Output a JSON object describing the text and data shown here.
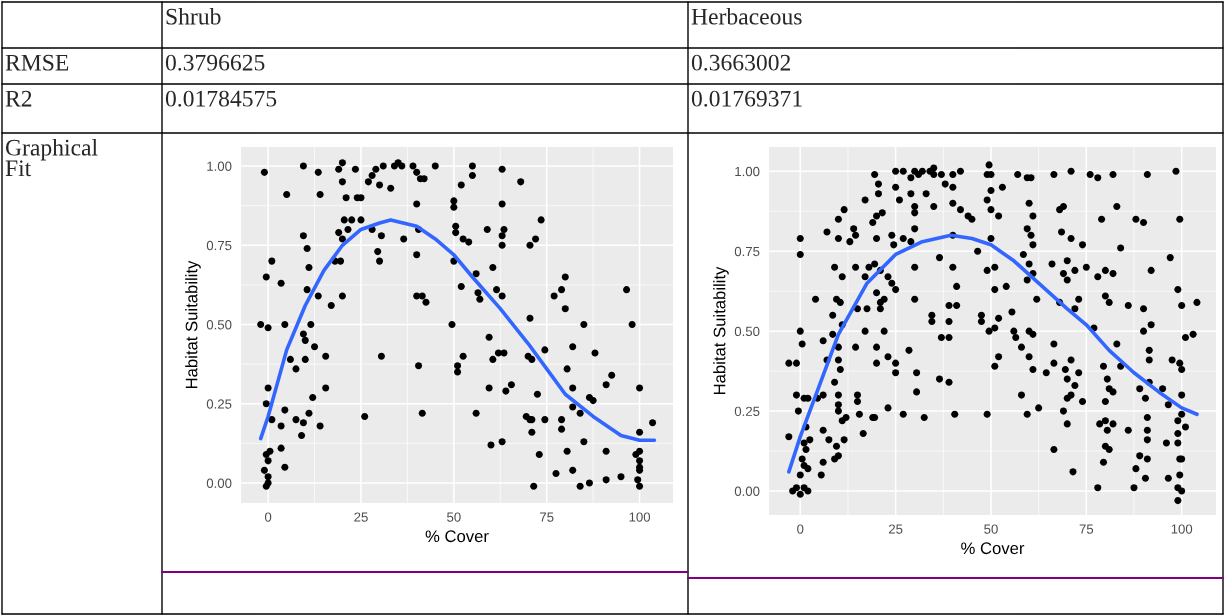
{
  "chart_data": [
    {
      "type": "other",
      "annotations": [
        "Shrub",
        "Herbaceous",
        "RMSE",
        "0.3796625",
        "0.3663002",
        "R2",
        "0.01784575",
        "0.01769371",
        "Graphical Fit"
      ]
    },
    {
      "type": "scatter",
      "xlabel": "% Cover",
      "ylabel": "Habitat Suitability",
      "xlim": [
        -7.3,
        109
      ],
      "ylim": [
        -0.063,
        1.06
      ],
      "xticks": [
        0,
        25,
        50,
        75,
        100
      ],
      "yticks": [
        {
          "value": 0,
          "label": "0.00"
        },
        {
          "value": 0.25,
          "label": "0.25"
        },
        {
          "value": 0.5,
          "label": "0.50"
        },
        {
          "value": 0.75,
          "label": "0.75"
        },
        {
          "value": 1,
          "label": "1.00"
        }
      ],
      "grid": true,
      "series": [
        {
          "type": "scatter",
          "color": "#000000",
          "marker": "circle",
          "x": [
            -1,
            9.5,
            13.5,
            5,
            14,
            19,
            20,
            23.5,
            20,
            21,
            24,
            25,
            27,
            28,
            30,
            29,
            31,
            33,
            34,
            35,
            36,
            39,
            40,
            41,
            42,
            45,
            40,
            55,
            55,
            63,
            68,
            52,
            50,
            50,
            63,
            20.5,
            22.5,
            25,
            19,
            20,
            21.5,
            28,
            30.5,
            36.5,
            40.5,
            50.5,
            50.5,
            52.5,
            54,
            59,
            63.5,
            63,
            63,
            70.5,
            72,
            73.5,
            9.5,
            10.5,
            1,
            11,
            18,
            19.5,
            29.5,
            30,
            40,
            50,
            60.5,
            56,
            -0.5,
            3.5,
            10.5,
            13.5,
            17,
            20,
            40,
            41.5,
            42.5,
            52,
            56.5,
            57,
            61.5,
            63,
            77,
            79,
            80,
            80,
            96.5,
            -2,
            0,
            4.5,
            11.5,
            9.5,
            10,
            12.5,
            15.5,
            6,
            10,
            30.5,
            49.5,
            70.5,
            59.5,
            85,
            98,
            7.5,
            40.5,
            51,
            51,
            52.5,
            60.5,
            62,
            63.5,
            70,
            71,
            74.5,
            82,
            88,
            80.5,
            0,
            15.5,
            12,
            -0.5,
            4.5,
            1,
            3.5,
            7.5,
            9.5,
            11,
            14,
            9,
            26,
            41.5,
            56,
            59.5,
            64,
            65.5,
            69.5,
            70.5,
            71,
            72.5,
            74.5,
            71,
            79,
            79,
            82,
            82,
            84,
            86.5,
            87.5,
            91,
            92.5,
            100,
            103.5,
            100,
            85,
            60,
            63,
            73,
            80.5,
            91,
            99,
            100,
            100,
            100,
            100,
            -0.5,
            0.5,
            0,
            3.5,
            4.5,
            -1,
            0,
            -0.5,
            0,
            77.5,
            82,
            71.5,
            84,
            86.5,
            91,
            95,
            99.5,
            100
          ],
          "values": [
            0.98,
            1.0,
            0.98,
            0.91,
            0.91,
            0.99,
            1.01,
            0.99,
            0.95,
            0.9,
            0.9,
            0.9,
            0.95,
            0.97,
            0.94,
            0.99,
            1.0,
            0.93,
            1.0,
            1.01,
            1.0,
            1.0,
            0.98,
            0.96,
            0.96,
            1.0,
            0.88,
            1.0,
            0.97,
            0.99,
            0.95,
            0.94,
            0.89,
            0.87,
            0.88,
            0.83,
            0.83,
            0.83,
            0.79,
            0.77,
            0.8,
            0.8,
            0.78,
            0.77,
            0.8,
            0.81,
            0.79,
            0.77,
            0.76,
            0.8,
            0.8,
            0.78,
            0.75,
            0.75,
            0.77,
            0.83,
            0.78,
            0.74,
            0.7,
            0.68,
            0.7,
            0.7,
            0.73,
            0.7,
            0.72,
            0.7,
            0.68,
            0.66,
            0.65,
            0.63,
            0.61,
            0.59,
            0.56,
            0.59,
            0.59,
            0.59,
            0.57,
            0.62,
            0.6,
            0.58,
            0.61,
            0.59,
            0.59,
            0.61,
            0.65,
            0.55,
            0.61,
            0.5,
            0.49,
            0.5,
            0.5,
            0.47,
            0.45,
            0.43,
            0.4,
            0.39,
            0.39,
            0.4,
            0.5,
            0.52,
            0.46,
            0.5,
            0.5,
            0.36,
            0.37,
            0.37,
            0.35,
            0.4,
            0.39,
            0.41,
            0.41,
            0.4,
            0.39,
            0.42,
            0.43,
            0.41,
            0.36,
            0.3,
            0.3,
            0.27,
            0.25,
            0.23,
            0.2,
            0.18,
            0.2,
            0.19,
            0.22,
            0.18,
            0.15,
            0.21,
            0.22,
            0.22,
            0.3,
            0.29,
            0.31,
            0.21,
            0.2,
            0.2,
            0.28,
            0.2,
            0.16,
            0.2,
            0.17,
            0.3,
            0.24,
            0.22,
            0.27,
            0.26,
            0.31,
            0.34,
            0.3,
            0.19,
            0.16,
            0.13,
            0.12,
            0.13,
            0.09,
            0.1,
            0.1,
            0.09,
            0.1,
            0.07,
            0.05,
            0.04,
            0.09,
            0.1,
            0.07,
            0.11,
            0.05,
            0.04,
            0.02,
            -0.01,
            0.0,
            0.03,
            0.04,
            -0.01,
            -0.01,
            0.0,
            0.01,
            0.02,
            0.01,
            -0.01
          ]
        },
        {
          "type": "line",
          "color": "#3366ff",
          "x": [
            -2,
            0,
            5,
            10,
            15,
            20,
            25,
            30,
            33,
            40,
            45,
            50,
            55,
            62.5,
            70,
            75,
            80,
            87.5,
            95,
            100,
            104
          ],
          "values": [
            0.14,
            0.21,
            0.42,
            0.56,
            0.67,
            0.75,
            0.8,
            0.82,
            0.83,
            0.81,
            0.77,
            0.72,
            0.65,
            0.55,
            0.44,
            0.36,
            0.28,
            0.21,
            0.15,
            0.135,
            0.135
          ]
        }
      ]
    },
    {
      "type": "scatter",
      "xlabel": "% Cover",
      "ylabel": "Habitat Suitability",
      "xlim": [
        -8.2,
        109
      ],
      "ylim": [
        -0.075,
        1.076
      ],
      "xticks": [
        0,
        25,
        50,
        75,
        100
      ],
      "yticks": [
        {
          "value": 0,
          "label": "0.00"
        },
        {
          "value": 0.25,
          "label": "0.25"
        },
        {
          "value": 0.5,
          "label": "0.50"
        },
        {
          "value": 0.75,
          "label": "0.75"
        },
        {
          "value": 1,
          "label": "1.00"
        }
      ],
      "grid": true,
      "series": [
        {
          "type": "scatter",
          "color": "#000000",
          "marker": "circle",
          "x": [
            19.5,
            20.5,
            20.5,
            25,
            27,
            29,
            30,
            31,
            32,
            34,
            35,
            35,
            37,
            38,
            40,
            40,
            42,
            49,
            49.5,
            50,
            57,
            59.5,
            60.5,
            66.5,
            71,
            76,
            78,
            82,
            91,
            98.5,
            25,
            26,
            29,
            30,
            30,
            33,
            35,
            40,
            42,
            44,
            45,
            50,
            49,
            50,
            52,
            53,
            60,
            61,
            68,
            69,
            79,
            83,
            88,
            90,
            99.5,
            11.5,
            17,
            10,
            19,
            20,
            21.5,
            14,
            14.5,
            7,
            10,
            13,
            0,
            0,
            20,
            24,
            24.5,
            27,
            29,
            30,
            40,
            46.5,
            50,
            59.5,
            60.5,
            61,
            58.5,
            68.5,
            71,
            74,
            84,
            97,
            9,
            11,
            14.5,
            18,
            19.5,
            17,
            21,
            23,
            24,
            25,
            30,
            36.5,
            40,
            41,
            49,
            51,
            51,
            54,
            59.5,
            60,
            61,
            66,
            69,
            70,
            70,
            72,
            75,
            78,
            80,
            82,
            92,
            99,
            4,
            9.5,
            10.5,
            20,
            21,
            22,
            21,
            17.5,
            15,
            30,
            34.5,
            34.5,
            39,
            41,
            39,
            47.5,
            52,
            55.5,
            47.5,
            49.5,
            51,
            56,
            56.5,
            60,
            61,
            62,
            68,
            72,
            73,
            80,
            81,
            86,
            90,
            92,
            90,
            100,
            104,
            103,
            101,
            0,
            0.5,
            6,
            8.5,
            8.5,
            11,
            10,
            14.5,
            17,
            22,
            20,
            28.5,
            37,
            39,
            58,
            66.5,
            77,
            83,
            91.5,
            -3,
            -1,
            7,
            10,
            10.5,
            20,
            23,
            25,
            25,
            30.5,
            30.5,
            36.5,
            39,
            51,
            52,
            60,
            61,
            64.5,
            66.5,
            69.5,
            71,
            70,
            72,
            73,
            79.5,
            80.5,
            82,
            84,
            89,
            91.5,
            95,
            97.5,
            99.5,
            100,
            91.5,
            -1,
            1,
            2,
            4.5,
            6,
            9,
            10,
            10,
            -0.5,
            10,
            11,
            12,
            15,
            15,
            15.5,
            19,
            23,
            27,
            32.5,
            40.5,
            49,
            58,
            59.5,
            62.5,
            69,
            70,
            71,
            74,
            78.5,
            80,
            80.5,
            82,
            80,
            81,
            86,
            90.5,
            91,
            91,
            91,
            96.5,
            100,
            99,
            100,
            101,
            99,
            -3,
            1.5,
            1,
            1.5,
            2.5,
            0.5,
            1,
            2,
            0,
            5.5,
            6,
            6,
            7.5,
            9,
            10,
            9.5,
            11.5,
            16.5,
            19.5,
            66.5,
            70,
            71.5,
            80,
            81,
            79.5,
            89,
            91,
            88,
            90.5,
            78,
            87.5,
            96,
            96.5,
            99,
            99.5,
            100,
            99.5,
            99,
            100,
            99,
            -2,
            -1,
            0,
            1,
            2
          ],
          "values": [
            0.99,
            0.96,
            0.93,
            1.0,
            1.0,
            0.98,
            1.0,
            0.99,
            1.0,
            1.0,
            1.01,
            0.99,
            0.99,
            0.96,
            0.99,
            0.95,
            1.0,
            0.99,
            1.02,
            0.99,
            0.99,
            0.98,
            0.98,
            0.99,
            1.0,
            0.99,
            0.98,
            0.99,
            0.99,
            1.0,
            0.95,
            0.91,
            0.93,
            0.89,
            0.87,
            0.93,
            0.89,
            0.9,
            0.88,
            0.86,
            0.85,
            0.94,
            0.91,
            0.88,
            0.86,
            0.95,
            0.9,
            0.86,
            0.88,
            0.89,
            0.85,
            0.89,
            0.85,
            0.84,
            0.85,
            0.88,
            0.91,
            0.85,
            0.84,
            0.86,
            0.87,
            0.82,
            0.8,
            0.81,
            0.79,
            0.78,
            0.79,
            0.74,
            0.79,
            0.8,
            0.77,
            0.79,
            0.78,
            0.82,
            0.8,
            0.75,
            0.79,
            0.82,
            0.8,
            0.77,
            0.74,
            0.81,
            0.79,
            0.77,
            0.76,
            0.73,
            0.7,
            0.67,
            0.7,
            0.7,
            0.71,
            0.67,
            0.69,
            0.67,
            0.65,
            0.63,
            0.7,
            0.73,
            0.7,
            0.64,
            0.69,
            0.7,
            0.63,
            0.64,
            0.66,
            0.71,
            0.68,
            0.71,
            0.68,
            0.72,
            0.66,
            0.69,
            0.7,
            0.67,
            0.69,
            0.68,
            0.69,
            0.63,
            0.6,
            0.6,
            0.59,
            0.62,
            0.59,
            0.6,
            0.57,
            0.57,
            0.57,
            0.6,
            0.55,
            0.53,
            0.58,
            0.58,
            0.53,
            0.55,
            0.54,
            0.56,
            0.53,
            0.5,
            0.51,
            0.5,
            0.48,
            0.5,
            0.49,
            0.6,
            0.59,
            0.57,
            0.6,
            0.61,
            0.59,
            0.58,
            0.57,
            0.52,
            0.5,
            0.58,
            0.59,
            0.49,
            0.48,
            0.5,
            0.46,
            0.47,
            0.49,
            0.55,
            0.52,
            0.45,
            0.45,
            0.5,
            0.5,
            0.45,
            0.44,
            0.48,
            0.48,
            0.45,
            0.46,
            0.51,
            0.46,
            0.44,
            0.4,
            0.4,
            0.41,
            0.41,
            0.38,
            0.4,
            0.42,
            0.4,
            0.37,
            0.37,
            0.31,
            0.35,
            0.34,
            0.39,
            0.42,
            0.42,
            0.38,
            0.37,
            0.4,
            0.38,
            0.41,
            0.35,
            0.33,
            0.37,
            0.39,
            0.35,
            0.31,
            0.39,
            0.32,
            0.34,
            0.32,
            0.41,
            0.4,
            0.38,
            0.41,
            0.3,
            0.29,
            0.29,
            0.29,
            0.3,
            0.34,
            0.3,
            0.27,
            0.25,
            0.25,
            0.22,
            0.23,
            0.3,
            0.28,
            0.24,
            0.23,
            0.26,
            0.24,
            0.23,
            0.24,
            0.24,
            0.3,
            0.24,
            0.26,
            0.25,
            0.29,
            0.3,
            0.28,
            0.21,
            0.22,
            0.19,
            0.21,
            0.28,
            0.32,
            0.19,
            0.29,
            0.23,
            0.19,
            0.16,
            0.27,
            0.3,
            0.22,
            0.24,
            0.2,
            0.18,
            0.17,
            0.2,
            0.15,
            0.13,
            0.16,
            0.1,
            0.08,
            0.07,
            0.05,
            0.05,
            0.19,
            0.09,
            0.16,
            0.1,
            0.11,
            0.14,
            0.16,
            0.18,
            0.23,
            0.13,
            0.21,
            0.06,
            0.14,
            0.13,
            0.09,
            0.11,
            0.1,
            0.07,
            0.04,
            0.01,
            0.01,
            0.15,
            0.04,
            0.15,
            0.1,
            0.1,
            0.05,
            0.01,
            0.0,
            -0.03,
            0.0,
            0.01,
            -0.01,
            0.01,
            0.0
          ]
        },
        {
          "type": "line",
          "color": "#3366ff",
          "x": [
            -3,
            0,
            5,
            10,
            17.5,
            25,
            32,
            39.5,
            45,
            50,
            56,
            62.5,
            70,
            75,
            81,
            87.5,
            94,
            100,
            104
          ],
          "values": [
            0.06,
            0.17,
            0.33,
            0.49,
            0.65,
            0.74,
            0.78,
            0.8,
            0.79,
            0.77,
            0.72,
            0.65,
            0.57,
            0.52,
            0.44,
            0.37,
            0.31,
            0.26,
            0.24
          ]
        }
      ]
    }
  ]
}
